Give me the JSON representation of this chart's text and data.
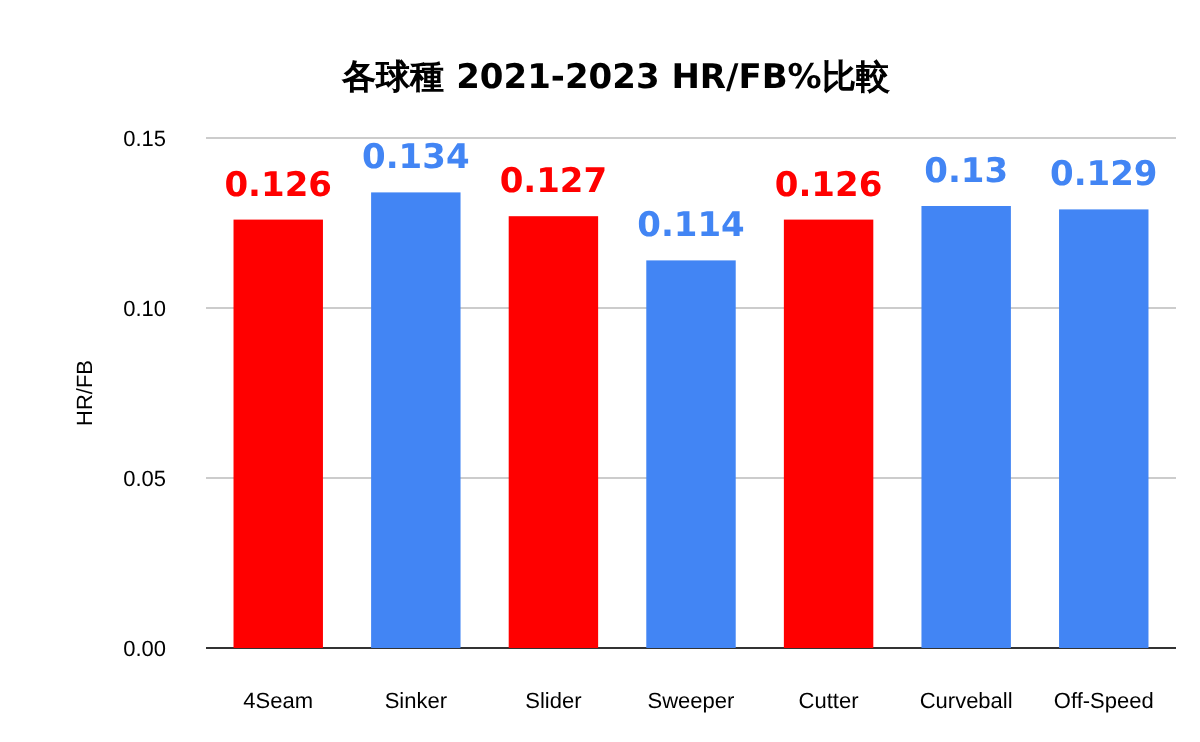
{
  "chart_data": {
    "type": "bar",
    "title": "各球種 2021-2023 HR/FB%比較",
    "ylabel": "HR/FB",
    "categories": [
      "4Seam",
      "Sinker",
      "Slider",
      "Sweeper",
      "Cutter",
      "Curveball",
      "Off-Speed"
    ],
    "values": [
      0.126,
      0.134,
      0.127,
      0.114,
      0.126,
      0.13,
      0.129
    ],
    "colors": [
      "#ff0000",
      "#4285f4",
      "#ff0000",
      "#4285f4",
      "#ff0000",
      "#4285f4",
      "#4285f4"
    ],
    "ylim": [
      0,
      0.15
    ],
    "yticks": [
      {
        "value": 0,
        "label": "0.00"
      },
      {
        "value": 0.05,
        "label": "0.05"
      },
      {
        "value": 0.1,
        "label": "0.10"
      },
      {
        "value": 0.15,
        "label": "0.15"
      }
    ],
    "grid": "y",
    "data_labels": true
  }
}
